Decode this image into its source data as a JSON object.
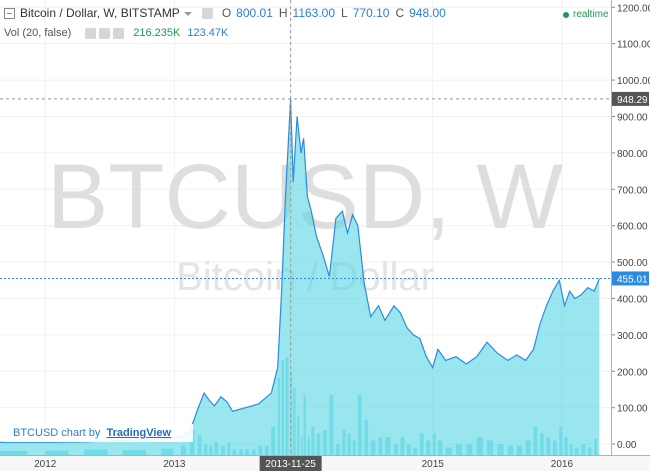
{
  "legend": {
    "symbol_title": "Bitcoin / Dollar, W, BITSTAMP",
    "open_label": "O",
    "open_value": "800.01",
    "high_label": "H",
    "high_value": "1163.00",
    "low_label": "L",
    "low_value": "770.10",
    "close_label": "C",
    "close_value": "948.00",
    "volume_label": "Vol (20, false)",
    "volume_value": "216.235K",
    "volume_ma_value": "123.47K"
  },
  "realtime_label": "realtime",
  "watermark": {
    "symbol": "BTCUSD, W",
    "name": "Bitcoin / Dollar"
  },
  "attribution": {
    "prefix": "BTCUSD chart by",
    "brand": "TradingView"
  },
  "crosshair": {
    "x_date_label": "2013-11-25",
    "y_price": 948.29,
    "y_label": "948.29"
  },
  "last_price": {
    "value": 455.01,
    "label": "455.01"
  },
  "colors": {
    "line": "#2a8be0",
    "area_fill": "#56d6e2",
    "volume": "#3fd3e0",
    "crosshair_label_bg": "#555555",
    "last_price_bg": "#2a8be0",
    "realtime": "#1a9a55"
  },
  "chart_data": {
    "type": "area",
    "title": "Bitcoin / Dollar, W, BITSTAMP",
    "y_axis": {
      "position": "right",
      "range": [
        -30,
        1220
      ],
      "tick_values": [
        0,
        100,
        200,
        300,
        400,
        500,
        600,
        700,
        800,
        900,
        1000,
        1100,
        1200
      ],
      "tick_labels": [
        "0.00",
        "100.00",
        "200.00",
        "300.00",
        "400.00",
        "500.00",
        "600.00",
        "700.00",
        "800.00",
        "900.00",
        "1000.00",
        "1100.00",
        "1200.00"
      ]
    },
    "x_axis": {
      "range": [
        2011.65,
        2016.38
      ],
      "tick_values": [
        2012.0,
        2013.0,
        2013.9,
        2015.0,
        2016.0
      ],
      "tick_labels": [
        "2012",
        "2013",
        "2013-11-25",
        "2015",
        "2016"
      ]
    },
    "grid": true,
    "series": [
      {
        "name": "BTCUSD",
        "x": [
          2011.65,
          2012.0,
          2012.3,
          2012.6,
          2012.9,
          2013.05,
          2013.12,
          2013.18,
          2013.23,
          2013.27,
          2013.31,
          2013.36,
          2013.41,
          2013.45,
          2013.5,
          2013.55,
          2013.6,
          2013.65,
          2013.7,
          2013.75,
          2013.8,
          2013.83,
          2013.86,
          2013.9,
          2013.92,
          2013.95,
          2013.98,
          2014.0,
          2014.03,
          2014.06,
          2014.1,
          2014.15,
          2014.2,
          2014.25,
          2014.3,
          2014.34,
          2014.38,
          2014.42,
          2014.47,
          2014.52,
          2014.58,
          2014.63,
          2014.7,
          2014.75,
          2014.8,
          2014.85,
          2014.9,
          2014.95,
          2015.0,
          2015.04,
          2015.1,
          2015.18,
          2015.26,
          2015.34,
          2015.42,
          2015.5,
          2015.58,
          2015.65,
          2015.72,
          2015.78,
          2015.83,
          2015.88,
          2015.93,
          2015.98,
          2016.02,
          2016.06,
          2016.1,
          2016.15,
          2016.2,
          2016.25,
          2016.29
        ],
        "y": [
          5,
          5,
          6,
          10,
          13,
          20,
          35,
          95,
          140,
          120,
          105,
          130,
          115,
          90,
          95,
          100,
          105,
          110,
          125,
          140,
          210,
          420,
          680,
          948,
          720,
          900,
          800,
          840,
          680,
          640,
          570,
          520,
          460,
          620,
          640,
          580,
          630,
          600,
          440,
          350,
          380,
          340,
          380,
          360,
          320,
          300,
          290,
          240,
          210,
          260,
          230,
          240,
          220,
          240,
          280,
          250,
          230,
          245,
          230,
          260,
          330,
          380,
          420,
          450,
          380,
          420,
          400,
          410,
          430,
          420,
          455
        ]
      }
    ],
    "volume_label": "Vol (20, false)"
  }
}
